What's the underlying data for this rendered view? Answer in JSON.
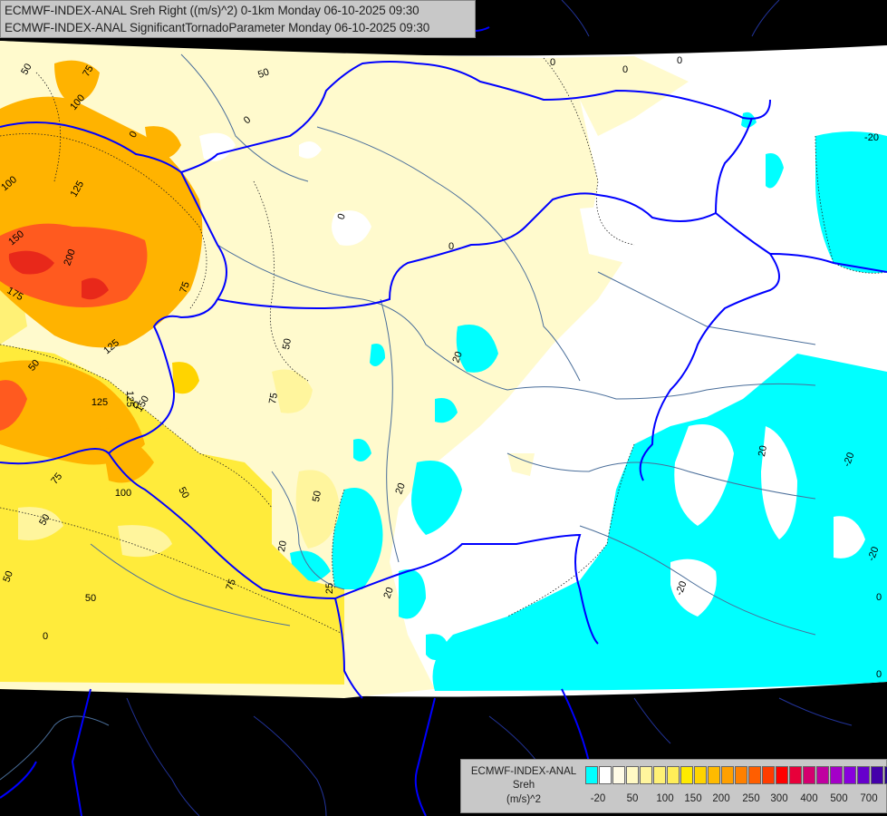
{
  "title": {
    "line1": "ECMWF-INDEX-ANAL Sreh Right ((m/s)^2) 0-1km Monday 06-10-2025 09:30",
    "line2": "ECMWF-INDEX-ANAL SignificantTornadoParameter Monday 06-10-2025 09:30"
  },
  "legend": {
    "label1": "ECMWF-INDEX-ANAL",
    "label2": "Sreh",
    "label3": "(m/s)^2",
    "swatches": [
      "#00ffff",
      "#ffffff",
      "#fffbe6",
      "#fff9c4",
      "#fff59d",
      "#fff176",
      "#ffee58",
      "#ffea00",
      "#ffd400",
      "#ffbb00",
      "#ffa000",
      "#ff8000",
      "#ff5e00",
      "#ff3c00",
      "#ff0000",
      "#e8003a",
      "#d4006e",
      "#c000a0",
      "#a400c8",
      "#8800dd",
      "#6600cc",
      "#4400aa",
      "#220088"
    ],
    "ticks": [
      "-20",
      "50",
      "100",
      "150",
      "200",
      "250",
      "300",
      "400",
      "500",
      "700"
    ]
  },
  "map": {
    "contour_labels": [
      "50",
      "75",
      "100",
      "0",
      "50",
      "0",
      "0",
      "0",
      "0",
      "-20",
      "100",
      "125",
      "150",
      "200",
      "175",
      "75",
      "0",
      "50",
      "0",
      "125",
      "50",
      "75",
      "125",
      "150",
      "20",
      "20",
      "20",
      "-20",
      "75",
      "100",
      "50",
      "50",
      "50",
      "50",
      "20",
      "20",
      "-20",
      "-20",
      "0",
      "50",
      "75",
      "25",
      "0",
      "0",
      "125",
      "0"
    ],
    "colors": {
      "background": "#000000",
      "low_shear": "#ffffff",
      "negative": "#00ffff",
      "weak": "#fffacd",
      "moderate": "#ffeb3b",
      "high": "#ffb300",
      "very_high": "#ff5a1f",
      "extreme": "#e8281a",
      "border": "#0000ff",
      "river": "#4a6e9a"
    }
  }
}
